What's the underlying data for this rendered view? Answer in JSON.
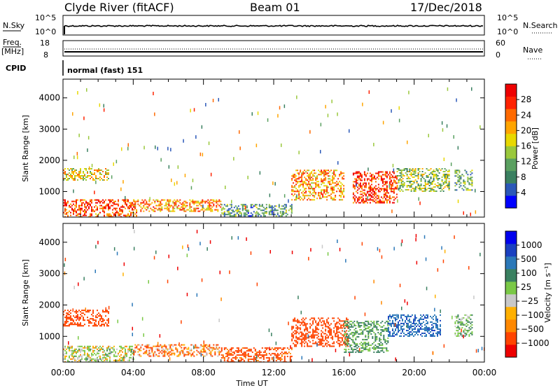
{
  "header": {
    "station": "Clyde River (fitACF)",
    "beam": "Beam 01",
    "date": "17/Dec/2018"
  },
  "top_panels": {
    "nsky_label": "N.Sky",
    "nsearch_label": "N.Search",
    "count_top": "10^5",
    "count_bottom": "10^0",
    "count_top_right": "10^5",
    "count_bottom_right": "10^0",
    "freq_label": "Freq.",
    "freq_unit": "[MHz]",
    "freq_top": "18",
    "freq_bottom": "8",
    "nave_label": "Nave",
    "nave_top": "60",
    "nave_bottom": "0",
    "cpid_label": "CPID",
    "cpid_text": "normal (fast) 151"
  },
  "x_axis": {
    "ticks": [
      "00:00",
      "04:00",
      "08:00",
      "12:00",
      "16:00",
      "20:00",
      "00:00"
    ],
    "label": "Time UT"
  },
  "y_axis": {
    "label": "Slant Range [km]",
    "ticks": [
      "1000",
      "2000",
      "3000",
      "4000"
    ]
  },
  "colors": {
    "power": [
      "#0000ff",
      "#2b58b8",
      "#3a8060",
      "#5aa060",
      "#9ac83c",
      "#e8d800",
      "#ffa500",
      "#ff6a00",
      "#ff2200",
      "#ee0000"
    ],
    "velocity": [
      "#ee0000",
      "#ff4400",
      "#ff8800",
      "#ffb000",
      "#c8c8c8",
      "#7ac846",
      "#3a8060",
      "#2b78b8",
      "#1a40c0",
      "#0000ee"
    ]
  },
  "chart_data": [
    {
      "type": "heatmap",
      "panel": "power",
      "colorbar_label": "Power [dB]",
      "colorbar_ticks": [
        "4",
        "8",
        "12",
        "16",
        "20",
        "24",
        "28"
      ],
      "clim": [
        0,
        32
      ],
      "xlim_hours": [
        0,
        24
      ],
      "ylim_km": [
        180,
        4600
      ],
      "xlabel": "",
      "ylabel": "Slant Range [km]",
      "regions": [
        {
          "t": [
            0.0,
            4.2
          ],
          "r": [
            200,
            750
          ],
          "power": 26
        },
        {
          "t": [
            0.0,
            2.6
          ],
          "r": [
            1350,
            1750
          ],
          "power": 18
        },
        {
          "t": [
            4.0,
            9.0
          ],
          "r": [
            350,
            750
          ],
          "power": 22
        },
        {
          "t": [
            9.0,
            13.0
          ],
          "r": [
            200,
            600
          ],
          "power": 10
        },
        {
          "t": [
            13.0,
            16.0
          ],
          "r": [
            750,
            1700
          ],
          "power": 22
        },
        {
          "t": [
            16.5,
            19.0
          ],
          "r": [
            650,
            1650
          ],
          "power": 28
        },
        {
          "t": [
            19.0,
            22.0
          ],
          "r": [
            1000,
            1750
          ],
          "power": 14
        },
        {
          "t": [
            22.3,
            23.3
          ],
          "r": [
            1050,
            1700
          ],
          "power": 12
        }
      ]
    },
    {
      "type": "heatmap",
      "panel": "velocity",
      "colorbar_label": "Velocity [m s⁻¹]",
      "colorbar_ticks": [
        "1000",
        "500",
        "100",
        "25",
        "−25",
        "−100",
        "−500",
        "−1000"
      ],
      "clim": [
        -1000,
        1000
      ],
      "xlim_hours": [
        0,
        24
      ],
      "ylim_km": [
        180,
        4600
      ],
      "xlabel": "Time UT",
      "ylabel": "Slant Range [km]",
      "regions": [
        {
          "t": [
            0.0,
            4.0
          ],
          "r": [
            200,
            700
          ],
          "velocity": 100
        },
        {
          "t": [
            0.0,
            2.6
          ],
          "r": [
            1350,
            1850
          ],
          "velocity": -300
        },
        {
          "t": [
            4.0,
            9.0
          ],
          "r": [
            350,
            750
          ],
          "velocity": -100
        },
        {
          "t": [
            9.0,
            13.0
          ],
          "r": [
            200,
            650
          ],
          "velocity": -200
        },
        {
          "t": [
            13.0,
            16.2
          ],
          "r": [
            700,
            1600
          ],
          "velocity": -300
        },
        {
          "t": [
            16.0,
            18.5
          ],
          "r": [
            500,
            1500
          ],
          "velocity": 300
        },
        {
          "t": [
            18.5,
            21.5
          ],
          "r": [
            1000,
            1700
          ],
          "velocity": 700
        },
        {
          "t": [
            22.3,
            23.3
          ],
          "r": [
            1000,
            1700
          ],
          "velocity": 200
        }
      ]
    }
  ]
}
